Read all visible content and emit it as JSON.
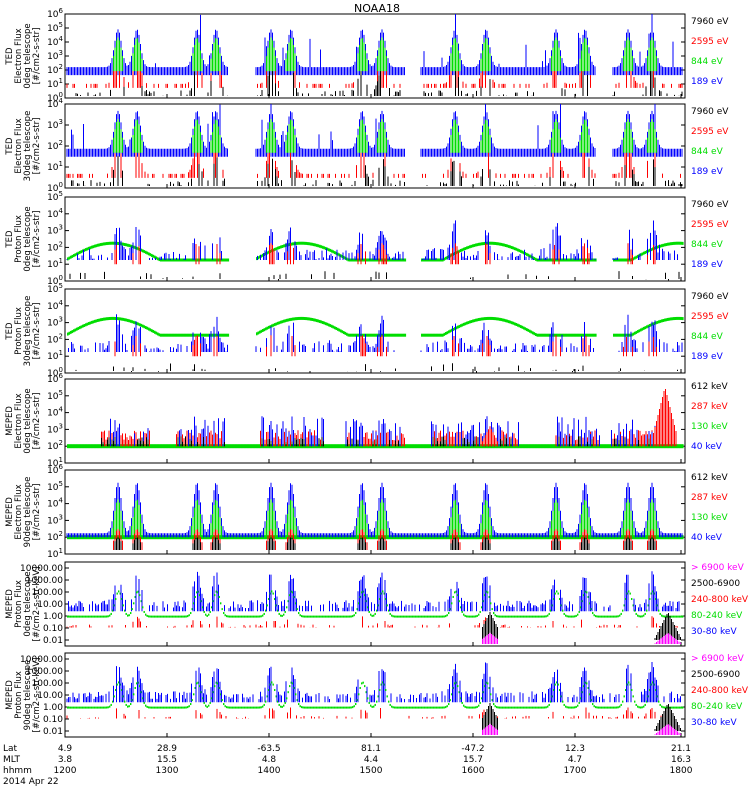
{
  "title": "NOAA18",
  "date_label": "2014 Apr 22",
  "colors": {
    "blue": "#0000ff",
    "red": "#ff0000",
    "green": "#00dd00",
    "black": "#000000",
    "magenta": "#ff00ff"
  },
  "footer": {
    "row_labels": [
      "Lat",
      "MLT",
      "hhmm"
    ],
    "columns": [
      {
        "lat": "4.9",
        "mlt": "3.8",
        "hhmm": "1200"
      },
      {
        "lat": "28.9",
        "mlt": "15.5",
        "hhmm": "1300"
      },
      {
        "lat": "-63.5",
        "mlt": "4.8",
        "hhmm": "1400"
      },
      {
        "lat": "81.1",
        "mlt": "4.4",
        "hhmm": "1500"
      },
      {
        "lat": "-47.2",
        "mlt": "15.7",
        "hhmm": "1600"
      },
      {
        "lat": "12.3",
        "mlt": "4.7",
        "hhmm": "1700"
      },
      {
        "lat": "21.1",
        "mlt": "16.3",
        "hhmm": "1800"
      }
    ]
  },
  "chart_data": [
    {
      "type": "line",
      "ylabel": [
        "TED",
        "Electron Flux",
        "0deg telescope",
        "[#/cm2-s-str]"
      ],
      "yscale": "log",
      "ylim": [
        1,
        1000000
      ],
      "yticks": [
        "10^0",
        "10^1",
        "10^2",
        "10^3",
        "10^4",
        "10^5",
        "10^6"
      ],
      "legend_placement": "right",
      "series": [
        {
          "name": "7960 eV",
          "color": "black"
        },
        {
          "name": "2595 eV",
          "color": "red"
        },
        {
          "name": "844 eV",
          "color": "green"
        },
        {
          "name": "189 eV",
          "color": "blue"
        }
      ]
    },
    {
      "type": "line",
      "ylabel": [
        "TED",
        "Electron Flux",
        "30deg telescope",
        "[#/cm2-s-str]"
      ],
      "yscale": "log",
      "ylim": [
        1,
        10000
      ],
      "yticks": [
        "10^0",
        "10^1",
        "10^2",
        "10^3",
        "10^4"
      ],
      "legend_placement": "right",
      "series": [
        {
          "name": "7960 eV",
          "color": "black"
        },
        {
          "name": "2595 eV",
          "color": "red"
        },
        {
          "name": "844 eV",
          "color": "green"
        },
        {
          "name": "189 eV",
          "color": "blue"
        }
      ]
    },
    {
      "type": "line",
      "ylabel": [
        "TED",
        "Proton Flux",
        "0deg telescope",
        "[#/cm2-s-str]"
      ],
      "yscale": "log",
      "ylim": [
        1,
        100000
      ],
      "yticks": [
        "10^0",
        "10^1",
        "10^2",
        "10^3",
        "10^4",
        "10^5"
      ],
      "legend_placement": "right",
      "series": [
        {
          "name": "7960 eV",
          "color": "black"
        },
        {
          "name": "2595 eV",
          "color": "red"
        },
        {
          "name": "844 eV",
          "color": "green"
        },
        {
          "name": "189 eV",
          "color": "blue"
        }
      ]
    },
    {
      "type": "line",
      "ylabel": [
        "TED",
        "Proton Flux",
        "30deg telescope",
        "[#/cm2-s-str]"
      ],
      "yscale": "log",
      "ylim": [
        1,
        100000
      ],
      "yticks": [
        "10^0",
        "10^1",
        "10^2",
        "10^3",
        "10^4",
        "10^5"
      ],
      "legend_placement": "right",
      "series": [
        {
          "name": "7960 eV",
          "color": "black"
        },
        {
          "name": "2595 eV",
          "color": "red"
        },
        {
          "name": "844 eV",
          "color": "green"
        },
        {
          "name": "189 eV",
          "color": "blue"
        }
      ]
    },
    {
      "type": "line",
      "ylabel": [
        "MEPED",
        "Electron Flux",
        "0deg telescope",
        "[#/cm2-s-str]"
      ],
      "yscale": "log",
      "ylim": [
        10,
        1000000
      ],
      "yticks": [
        "10^1",
        "10^2",
        "10^3",
        "10^4",
        "10^5",
        "10^6"
      ],
      "legend_placement": "right",
      "series": [
        {
          "name": "612 keV",
          "color": "black"
        },
        {
          "name": "287 keV",
          "color": "red"
        },
        {
          "name": "130 keV",
          "color": "green"
        },
        {
          "name": "40 keV",
          "color": "blue"
        }
      ]
    },
    {
      "type": "line",
      "ylabel": [
        "MEPED",
        "Electron Flux",
        "90deg telescope",
        "[#/cm2-s-str]"
      ],
      "yscale": "log",
      "ylim": [
        10,
        1000000
      ],
      "yticks": [
        "10^1",
        "10^2",
        "10^3",
        "10^4",
        "10^5",
        "10^6"
      ],
      "legend_placement": "right",
      "series": [
        {
          "name": "612 keV",
          "color": "black"
        },
        {
          "name": "287 keV",
          "color": "red"
        },
        {
          "name": "130 keV",
          "color": "green"
        },
        {
          "name": "40 keV",
          "color": "blue"
        }
      ]
    },
    {
      "type": "line",
      "ylabel": [
        "MEPED",
        "Proton Flux",
        "0deg telescope",
        "[#/cm2-s-str-keV]"
      ],
      "yscale": "log",
      "ylim": [
        0.01,
        10000
      ],
      "yticks": [
        "10000.00",
        "1000.00",
        "100.00",
        "10.00",
        "1.00",
        "0.10",
        "0.01"
      ],
      "legend_placement": "right",
      "series": [
        {
          "name": "> 6900 keV",
          "color": "magenta"
        },
        {
          "name": "2500-6900",
          "color": "black"
        },
        {
          "name": "240-800 keV",
          "color": "red"
        },
        {
          "name": "80-240 keV",
          "color": "green"
        },
        {
          "name": "30-80 keV",
          "color": "blue"
        }
      ]
    },
    {
      "type": "line",
      "ylabel": [
        "MEPED",
        "Proton Flux",
        "90deg telescope",
        "[#/cm2-s-str-keV]"
      ],
      "yscale": "log",
      "ylim": [
        0.01,
        10000
      ],
      "yticks": [
        "10000.00",
        "1000.00",
        "100.00",
        "10.00",
        "1.00",
        "0.10",
        "0.01"
      ],
      "legend_placement": "right",
      "series": [
        {
          "name": "> 6900 keV",
          "color": "magenta"
        },
        {
          "name": "2500-6900",
          "color": "black"
        },
        {
          "name": "240-800 keV",
          "color": "red"
        },
        {
          "name": "80-240 keV",
          "color": "green"
        },
        {
          "name": "30-80 keV",
          "color": "blue"
        }
      ]
    }
  ]
}
